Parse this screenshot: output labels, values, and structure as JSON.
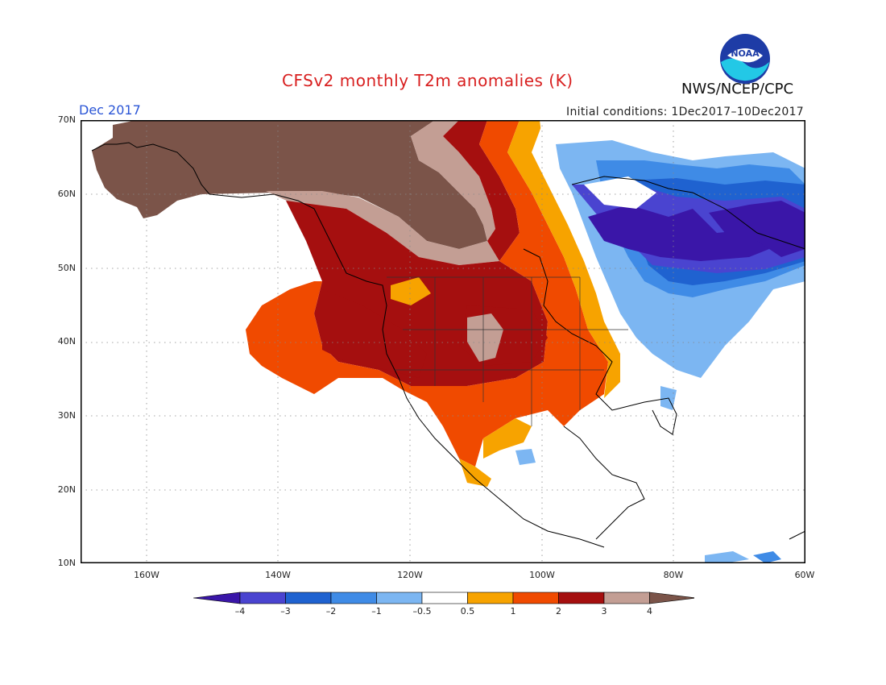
{
  "title": "CFSv2 monthly T2m anomalies (K)",
  "agency": "NWS/NCEP/CPC",
  "logo_text": "NOAA",
  "month_label": "Dec 2017",
  "initial_conditions": "Initial conditions:  1Dec2017–10Dec2017",
  "axes": {
    "lat_ticks": [
      "70N",
      "60N",
      "50N",
      "40N",
      "30N",
      "20N",
      "10N"
    ],
    "lon_ticks": [
      "160W",
      "140W",
      "120W",
      "100W",
      "80W",
      "60W"
    ]
  },
  "colorbar": {
    "labels": [
      "–4",
      "–3",
      "–2",
      "–1",
      "–0.5",
      "0.5",
      "1",
      "2",
      "3",
      "4"
    ],
    "colors": [
      "#3a16a8",
      "#4a44d0",
      "#1f62d0",
      "#3f8be6",
      "#7cb6f2",
      "#ffffff",
      "#f7a300",
      "#f04a00",
      "#a50f0f",
      "#c39e94",
      "#7b5449"
    ]
  }
}
